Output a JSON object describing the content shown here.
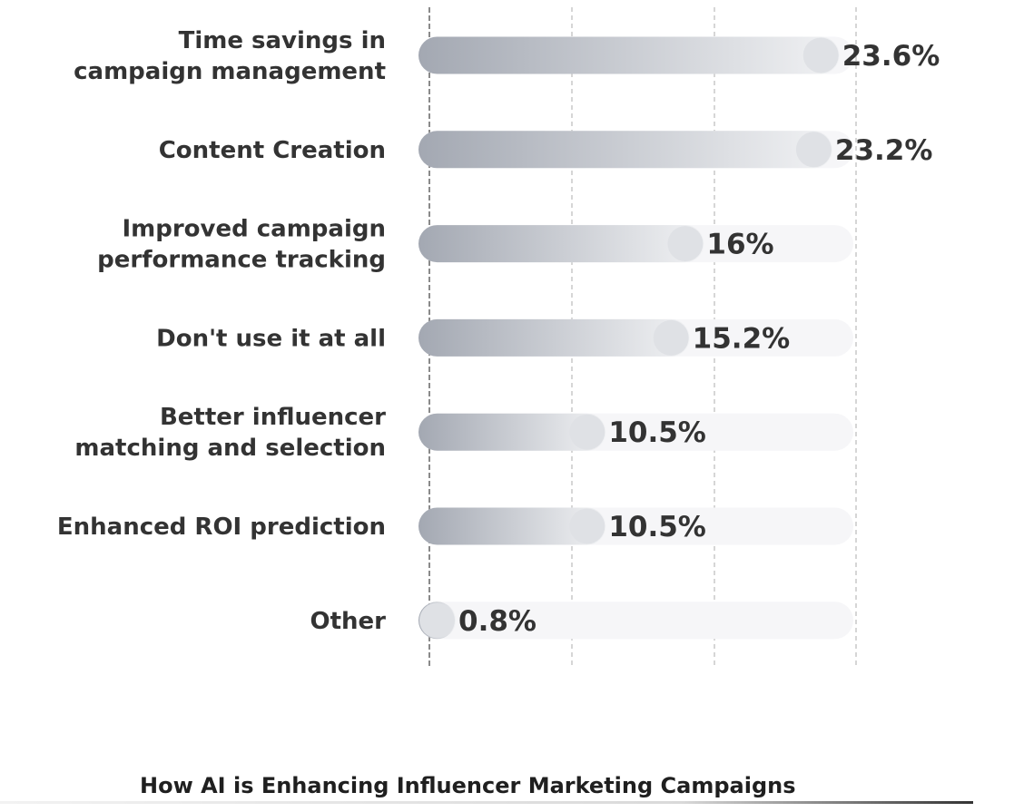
{
  "chart_data": {
    "type": "bar",
    "orientation": "horizontal",
    "categories": [
      [
        "Time savings in",
        "campaign management"
      ],
      [
        "Content Creation"
      ],
      [
        "Improved campaign",
        "performance tracking"
      ],
      [
        "Don't use it at all"
      ],
      [
        "Better influencer",
        "matching and selection"
      ],
      [
        "Enhanced ROI prediction"
      ],
      [
        "Other"
      ]
    ],
    "values": [
      23.6,
      23.2,
      16,
      15.2,
      10.5,
      10.5,
      0.8
    ],
    "value_labels": [
      "23.6%",
      "23.2%",
      "16%",
      "15.2%",
      "10.5%",
      "10.5%",
      "0.8%"
    ],
    "unit": "%",
    "xlim": [
      0,
      24
    ],
    "grid": true,
    "legend": "none",
    "caption": "How AI is Enhancing Influencer Marketing Campaigns",
    "colors": {
      "bar_start": "#a3a8b2",
      "bar_end": "#f1f2f4",
      "track": "#f6f6f8",
      "cap": "#dfe1e5",
      "text": "#333333",
      "grid": "#c9c9c9"
    }
  }
}
